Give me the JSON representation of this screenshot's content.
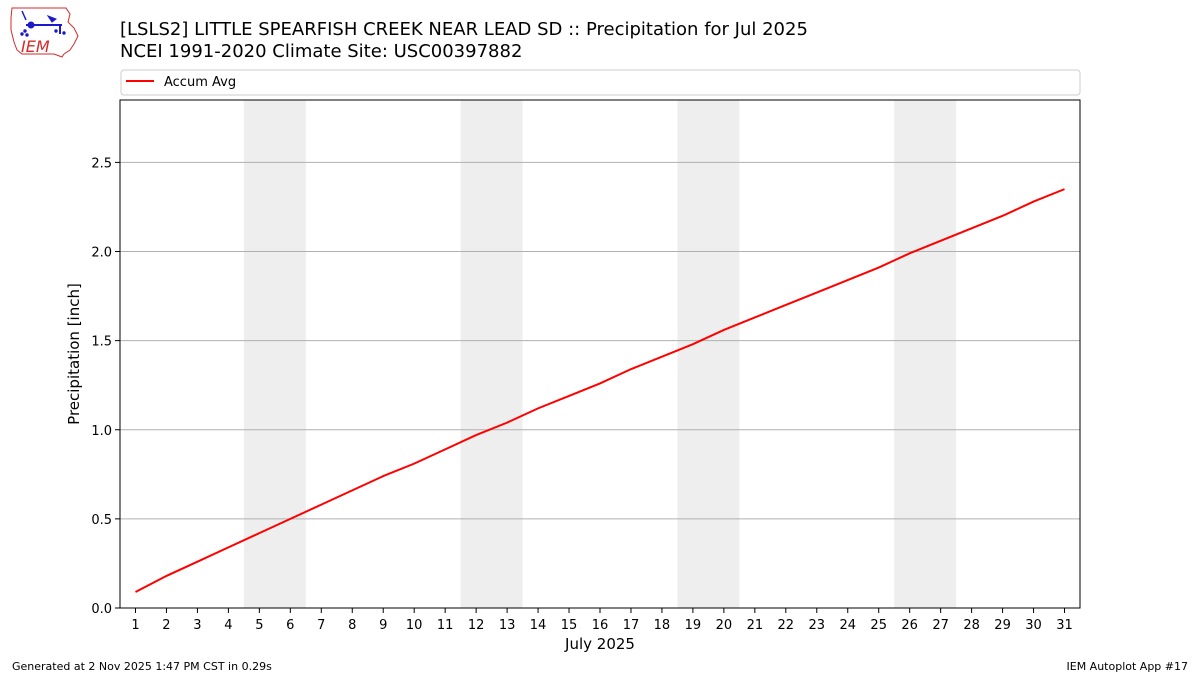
{
  "chart_data": {
    "type": "line",
    "title": "[LSLS2] LITTLE SPEARFISH CREEK NEAR LEAD  SD :: Precipitation for Jul 2025",
    "subtitle": "NCEI 1991-2020 Climate Site: USC00397882",
    "xlabel": "July 2025",
    "ylabel": "Precipitation [inch]",
    "xlim": [
      0.5,
      31.5
    ],
    "ylim": [
      0,
      2.85
    ],
    "x_ticks": [
      "1",
      "2",
      "3",
      "4",
      "5",
      "6",
      "7",
      "8",
      "9",
      "10",
      "11",
      "12",
      "13",
      "14",
      "15",
      "16",
      "17",
      "18",
      "19",
      "20",
      "21",
      "22",
      "23",
      "24",
      "25",
      "26",
      "27",
      "28",
      "29",
      "30",
      "31"
    ],
    "y_ticks": [
      "0.0",
      "0.5",
      "1.0",
      "1.5",
      "2.0",
      "2.5"
    ],
    "y_tick_values": [
      0,
      0.5,
      1.0,
      1.5,
      2.0,
      2.5
    ],
    "grid": "horizontal",
    "legend_position": "top",
    "weekend_shading": [
      [
        5,
        6
      ],
      [
        12,
        13
      ],
      [
        19,
        20
      ],
      [
        26,
        27
      ]
    ],
    "series": [
      {
        "name": "Accum Avg",
        "color": "#ff0000",
        "x": [
          1,
          2,
          3,
          4,
          5,
          6,
          7,
          8,
          9,
          10,
          11,
          12,
          13,
          14,
          15,
          16,
          17,
          18,
          19,
          20,
          21,
          22,
          23,
          24,
          25,
          26,
          27,
          28,
          29,
          30,
          31
        ],
        "values": [
          0.09,
          0.18,
          0.26,
          0.34,
          0.42,
          0.5,
          0.58,
          0.66,
          0.74,
          0.81,
          0.89,
          0.97,
          1.04,
          1.12,
          1.19,
          1.26,
          1.34,
          1.41,
          1.48,
          1.56,
          1.63,
          1.7,
          1.77,
          1.84,
          1.91,
          1.99,
          2.06,
          2.13,
          2.2,
          2.28,
          2.35
        ]
      }
    ]
  },
  "logo": {
    "text": "IEM"
  },
  "footer": {
    "left": "Generated at 2 Nov 2025 1:47 PM CST in 0.29s",
    "right": "IEM Autoplot App #17"
  },
  "colors": {
    "weekend_shade": "#eeeeee",
    "grid": "#b0b0b0",
    "legend_border": "#cccccc",
    "logo_red": "#d42a2a",
    "logo_blue": "#1a1acc"
  }
}
